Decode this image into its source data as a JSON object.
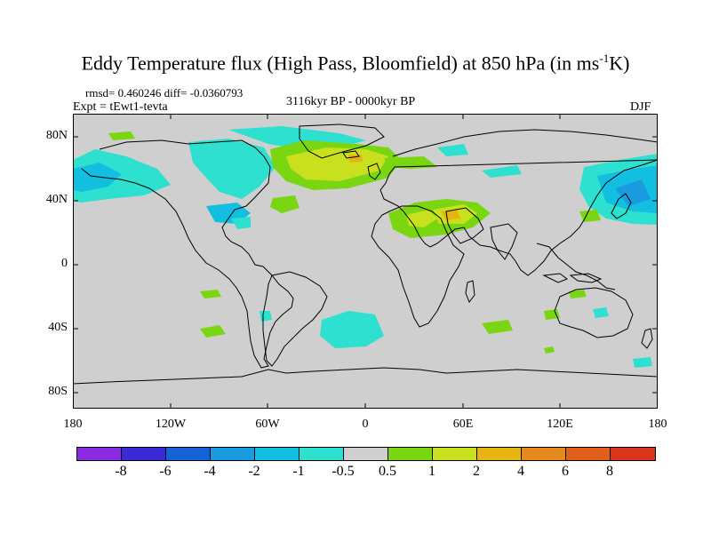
{
  "title_prefix": "Eddy Temperature flux (High Pass, Bloomfield) at 850 hPa (in ms",
  "title_sup": "-1",
  "title_suffix": "K)",
  "stats_line": "rmsd= 0.460246 diff= -0.0360793",
  "expt_line": "Expt = tEwt1-tevta",
  "period_line": "3116kyr BP - 0000kyr BP",
  "season": "DJF",
  "lat_labels": [
    "80N",
    "40N",
    "0",
    "40S",
    "80S"
  ],
  "lon_labels": [
    "180",
    "120W",
    "60W",
    "0",
    "60E",
    "120E",
    "180"
  ],
  "colorbar": {
    "colors": [
      "#8a2be2",
      "#3a2ad6",
      "#1463d6",
      "#1a9be0",
      "#12bfe0",
      "#2ee0d0",
      "#cfcfcf",
      "#7ad610",
      "#c8e01e",
      "#e8b412",
      "#e58a1e",
      "#e0601a",
      "#d8351a"
    ],
    "labels": [
      "-8",
      "-6",
      "-4",
      "-2",
      "-1",
      "-0.5",
      "0.5",
      "1",
      "2",
      "4",
      "6",
      "8"
    ]
  },
  "map": {
    "background": "#cfcfcf",
    "positive_weak": "#7ad610",
    "positive_mid": "#c8e01e",
    "positive_strong": "#e8b412",
    "negative_weak": "#2ee0d0",
    "negative_mid": "#12bfe0",
    "negative_strong": "#1a9be0"
  }
}
